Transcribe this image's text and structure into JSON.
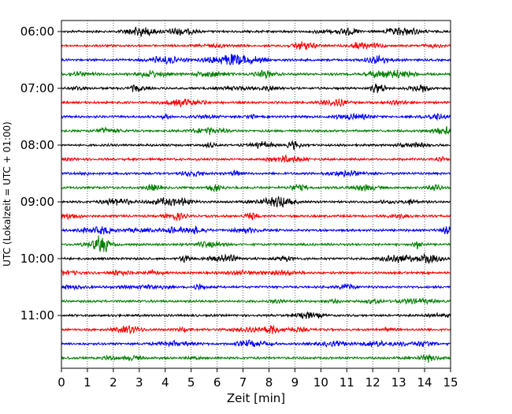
{
  "chart_data": {
    "type": "line",
    "title": "",
    "xlabel": "Zeit  [min]",
    "ylabel": "UTC (Lokalzeit = UTC + 01:00)",
    "xlim": [
      0,
      15
    ],
    "x_ticks": [
      "0",
      "1",
      "2",
      "3",
      "4",
      "5",
      "6",
      "7",
      "8",
      "9",
      "10",
      "11",
      "12",
      "13",
      "14",
      "15"
    ],
    "y_ticks": [
      "06:00",
      "07:00",
      "08:00",
      "09:00",
      "10:00",
      "11:00"
    ],
    "trace_start": "06:00",
    "trace_interval_minutes": 15,
    "trace_count": 24,
    "trace_colors": [
      "#000000",
      "#ff0000",
      "#0000ff",
      "#008000"
    ],
    "grid": {
      "x": true,
      "style": "dotted"
    }
  }
}
